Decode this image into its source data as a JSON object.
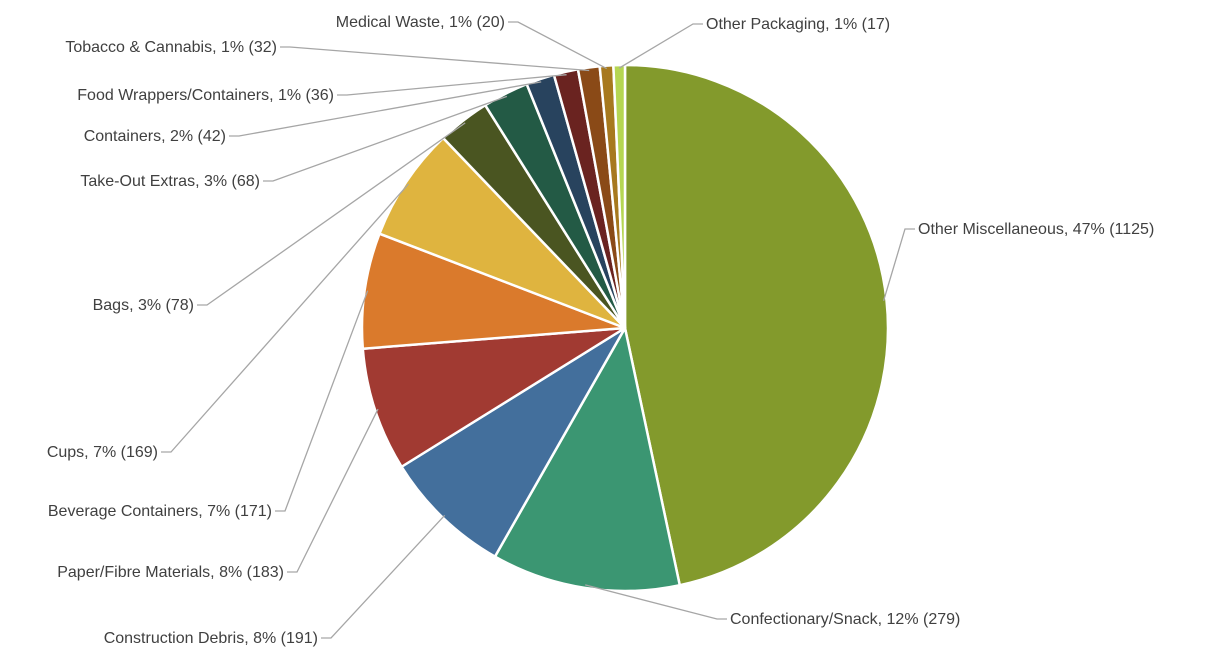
{
  "chart_data": {
    "type": "pie",
    "title": "",
    "grid": false,
    "legend": "none",
    "start_angle_deg": 0,
    "direction": "clockwise",
    "slices": [
      {
        "name": "Other Miscellaneous",
        "value": 1125,
        "percent": "47%",
        "label": "Other Miscellaneous, 47% (1125)",
        "color": "#839A2C"
      },
      {
        "name": "Confectionary/Snack",
        "value": 279,
        "percent": "12%",
        "label": "Confectionary/Snack, 12% (279)",
        "color": "#3B9672"
      },
      {
        "name": "Construction Debris",
        "value": 191,
        "percent": "8%",
        "label": "Construction Debris, 8% (191)",
        "color": "#436F9C"
      },
      {
        "name": "Paper/Fibre Materials",
        "value": 183,
        "percent": "8%",
        "label": "Paper/Fibre Materials, 8% (183)",
        "color": "#A13A32"
      },
      {
        "name": "Beverage Containers",
        "value": 171,
        "percent": "7%",
        "label": "Beverage Containers, 7% (171)",
        "color": "#DA7A2C"
      },
      {
        "name": "Cups",
        "value": 169,
        "percent": "7%",
        "label": "Cups, 7% (169)",
        "color": "#DFB43F"
      },
      {
        "name": "Bags",
        "value": 78,
        "percent": "3%",
        "label": "Bags, 3% (78)",
        "color": "#4A5521"
      },
      {
        "name": "Take-Out Extras",
        "value": 68,
        "percent": "3%",
        "label": "Take-Out Extras, 3% (68)",
        "color": "#235A45"
      },
      {
        "name": "Containers",
        "value": 42,
        "percent": "2%",
        "label": "Containers, 2% (42)",
        "color": "#28435E"
      },
      {
        "name": "Food Wrappers/Containers",
        "value": 36,
        "percent": "1%",
        "label": "Food Wrappers/Containers, 1% (36)",
        "color": "#6A2320"
      },
      {
        "name": "Tobacco & Cannabis",
        "value": 32,
        "percent": "1%",
        "label": "Tobacco & Cannabis, 1% (32)",
        "color": "#8A4A17"
      },
      {
        "name": "Medical Waste",
        "value": 20,
        "percent": "1%",
        "label": "Medical Waste, 1% (20)",
        "color": "#A7791E"
      },
      {
        "name": "Other Packaging",
        "value": 17,
        "percent": "1%",
        "label": "Other Packaging, 1% (17)",
        "color": "#B5D653"
      }
    ]
  }
}
